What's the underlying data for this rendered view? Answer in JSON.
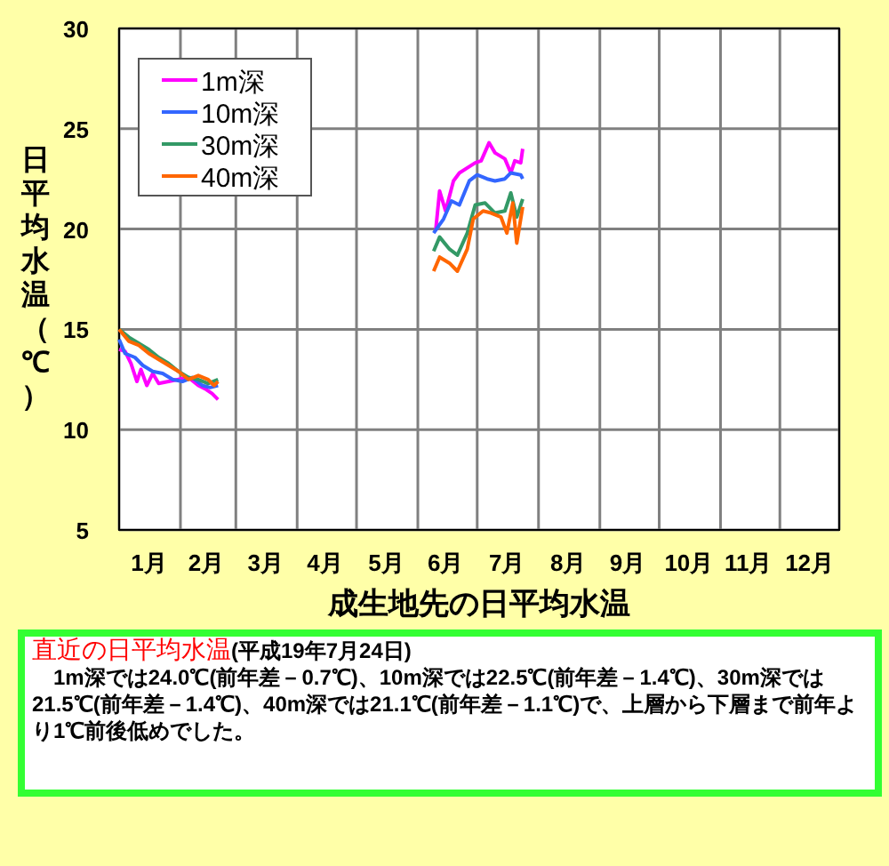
{
  "chart_data": {
    "type": "line",
    "title": "成生地先の日平均水温",
    "ylabel": "日平均水温（℃）",
    "xlim": [
      "--01-01",
      "--12-31"
    ],
    "ylim": [
      5,
      30
    ],
    "yticks": [
      5,
      10,
      15,
      20,
      25,
      30
    ],
    "xticks": [
      {
        "value": "--01-01",
        "label": null
      },
      {
        "value": "--01-16",
        "label": "1月"
      },
      {
        "value": "--02-01",
        "label": null
      },
      {
        "value": "--02-14",
        "label": "2月"
      },
      {
        "value": "--03-01",
        "label": null
      },
      {
        "value": "--03-16",
        "label": "3月"
      },
      {
        "value": "--04-01",
        "label": null
      },
      {
        "value": "--04-15",
        "label": "4月"
      },
      {
        "value": "--05-01",
        "label": null
      },
      {
        "value": "--05-16",
        "label": "5月"
      },
      {
        "value": "--06-01",
        "label": null
      },
      {
        "value": "--06-15",
        "label": "6月"
      },
      {
        "value": "--07-01",
        "label": null
      },
      {
        "value": "--07-16",
        "label": "7月"
      },
      {
        "value": "--08-01",
        "label": null
      },
      {
        "value": "--08-16",
        "label": "8月"
      },
      {
        "value": "--09-01",
        "label": null
      },
      {
        "value": "--09-15",
        "label": "9月"
      },
      {
        "value": "--10-01",
        "label": null
      },
      {
        "value": "--10-16",
        "label": "10月"
      },
      {
        "value": "--11-01",
        "label": null
      },
      {
        "value": "--11-15",
        "label": "11月"
      },
      {
        "value": "--12-01",
        "label": null
      },
      {
        "value": "--12-16",
        "label": "12月"
      },
      {
        "value": "--12-31",
        "label": null
      }
    ],
    "grid": true,
    "legend": "top left",
    "line_style": "solid",
    "marker": "none",
    "series": [
      {
        "name": "1m深",
        "color": "#ff00ff",
        "x": [
          "--01-01",
          "--01-04",
          "--01-07",
          "--01-10",
          "--01-12",
          "--01-15",
          "--01-18",
          "--01-21",
          "--01-26",
          "--01-31",
          "--02-05",
          "--02-10",
          "--02-14",
          "--02-17",
          "--02-20",
          "--06-10",
          "--06-12",
          "--06-15",
          "--06-19",
          "--06-22",
          "--06-30",
          "--07-03",
          "--07-07",
          "--07-10",
          "--07-15",
          "--07-18",
          "--07-20",
          "--07-23",
          "--07-24"
        ],
        "values": [
          14.0,
          13.9,
          13.3,
          12.4,
          13.0,
          12.2,
          12.8,
          12.3,
          12.4,
          12.5,
          12.6,
          12.2,
          12.0,
          11.8,
          11.5,
          19.9,
          21.9,
          20.9,
          22.4,
          22.8,
          23.3,
          23.4,
          24.3,
          23.8,
          23.5,
          22.8,
          23.4,
          23.3,
          24.0
        ]
      },
      {
        "name": "10m深",
        "color": "#3366ff",
        "x": [
          "--01-01",
          "--01-04",
          "--01-09",
          "--01-13",
          "--01-18",
          "--01-23",
          "--01-28",
          "--02-02",
          "--02-07",
          "--02-12",
          "--02-16",
          "--02-20",
          "--06-09",
          "--06-14",
          "--06-18",
          "--06-22",
          "--06-27",
          "--07-01",
          "--07-06",
          "--07-10",
          "--07-15",
          "--07-18",
          "--07-23",
          "--07-24"
        ],
        "values": [
          14.5,
          13.8,
          13.6,
          13.2,
          12.9,
          12.8,
          12.5,
          12.4,
          12.6,
          12.2,
          12.1,
          12.2,
          19.8,
          20.5,
          21.4,
          21.2,
          22.4,
          22.7,
          22.5,
          22.4,
          22.5,
          22.8,
          22.7,
          22.5
        ]
      },
      {
        "name": "30m深",
        "color": "#339966",
        "x": [
          "--01-01",
          "--01-06",
          "--01-11",
          "--01-16",
          "--01-21",
          "--01-26",
          "--01-31",
          "--02-05",
          "--02-10",
          "--02-15",
          "--02-20",
          "--06-09",
          "--06-12",
          "--06-17",
          "--06-21",
          "--06-26",
          "--06-30",
          "--07-05",
          "--07-10",
          "--07-15",
          "--07-18",
          "--07-21",
          "--07-24"
        ],
        "values": [
          15.0,
          14.6,
          14.3,
          14.0,
          13.6,
          13.3,
          12.9,
          12.6,
          12.5,
          12.3,
          12.5,
          18.9,
          19.6,
          19.0,
          18.7,
          19.8,
          21.2,
          21.3,
          20.8,
          20.9,
          21.8,
          20.6,
          21.5
        ]
      },
      {
        "name": "40m深",
        "color": "#ff6600",
        "x": [
          "--01-01",
          "--01-06",
          "--01-11",
          "--01-16",
          "--01-21",
          "--01-26",
          "--01-31",
          "--02-05",
          "--02-10",
          "--02-15",
          "--02-18",
          "--02-20",
          "--06-09",
          "--06-12",
          "--06-17",
          "--06-21",
          "--06-26",
          "--06-29",
          "--07-04",
          "--07-08",
          "--07-13",
          "--07-16",
          "--07-19",
          "--07-21",
          "--07-24"
        ],
        "values": [
          15.0,
          14.4,
          14.2,
          13.8,
          13.5,
          13.2,
          12.9,
          12.5,
          12.7,
          12.5,
          12.2,
          12.4,
          17.9,
          18.6,
          18.3,
          17.9,
          19.0,
          20.5,
          20.9,
          20.8,
          20.6,
          19.8,
          21.3,
          19.3,
          21.1
        ]
      }
    ],
    "annotations": [
      "直近の日平均水温",
      "(平成19年7月24日)",
      "　1m深では24.0℃(前年差－0.7℃)、10m深では22.5℃(前年差－1.4℃)、30m深では21.5℃(前年差－1.4℃)、40m深では21.1℃(前年差－1.1℃)で、上層から下層まで前年より1℃前後低めでした。"
    ]
  }
}
